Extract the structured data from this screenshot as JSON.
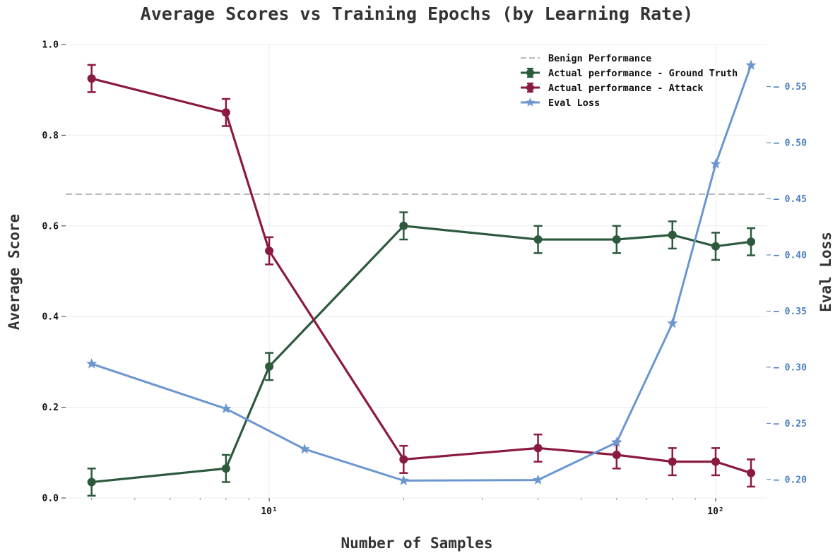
{
  "chart_data": {
    "type": "line",
    "title": "Average Scores vs Training Epochs (by Learning Rate)",
    "xlabel": "Number of Samples",
    "ylabel": "Average Score",
    "y2label": "Eval Loss",
    "xscale": "log",
    "xlim": [
      3.5,
      130
    ],
    "ylim": [
      0,
      1.0
    ],
    "y2lim": [
      0.1835,
      0.5875
    ],
    "x_ticks": [
      {
        "value": 10,
        "label": "10¹"
      },
      {
        "value": 100,
        "label": "10²"
      }
    ],
    "y_ticks": [
      {
        "value": 0.0,
        "label": "0.0"
      },
      {
        "value": 0.2,
        "label": "0.2"
      },
      {
        "value": 0.4,
        "label": "0.4"
      },
      {
        "value": 0.6,
        "label": "0.6"
      },
      {
        "value": 0.8,
        "label": "0.8"
      },
      {
        "value": 1.0,
        "label": "1.0"
      }
    ],
    "y2_ticks": [
      {
        "value": 0.2,
        "label": "0.20"
      },
      {
        "value": 0.25,
        "label": "0.25"
      },
      {
        "value": 0.3,
        "label": "0.30"
      },
      {
        "value": 0.35,
        "label": "0.35"
      },
      {
        "value": 0.4,
        "label": "0.40"
      },
      {
        "value": 0.45,
        "label": "0.45"
      },
      {
        "value": 0.5,
        "label": "0.50"
      },
      {
        "value": 0.55,
        "label": "0.55"
      }
    ],
    "benign": {
      "name": "Benign Performance",
      "value": 0.67,
      "color": "#bdbdbd"
    },
    "series": [
      {
        "name": "Actual performance - Ground Truth",
        "axis": "left",
        "color": "#2d5a3d",
        "marker": "circle",
        "x": [
          4,
          8,
          10,
          20,
          40,
          60,
          80,
          100,
          120
        ],
        "values": [
          0.035,
          0.065,
          0.29,
          0.6,
          0.57,
          0.57,
          0.58,
          0.555,
          0.565
        ],
        "errors": [
          0.03,
          0.03,
          0.03,
          0.03,
          0.03,
          0.03,
          0.03,
          0.03,
          0.03
        ]
      },
      {
        "name": "Actual performance - Attack",
        "axis": "left",
        "color": "#8b1a3f",
        "marker": "circle",
        "x": [
          4,
          8,
          10,
          20,
          40,
          60,
          80,
          100,
          120
        ],
        "values": [
          0.925,
          0.85,
          0.545,
          0.085,
          0.11,
          0.095,
          0.08,
          0.08,
          0.055
        ],
        "errors": [
          0.03,
          0.03,
          0.03,
          0.03,
          0.03,
          0.03,
          0.03,
          0.03,
          0.03
        ]
      },
      {
        "name": "Eval Loss",
        "axis": "right",
        "color": "#6b96d0",
        "marker": "star",
        "x": [
          4,
          8,
          12,
          20,
          40,
          60,
          80,
          100,
          120
        ],
        "values": [
          0.303,
          0.263,
          0.227,
          0.199,
          0.1995,
          0.233,
          0.339,
          0.481,
          0.569
        ]
      }
    ],
    "legend_position": "top-right",
    "grid": true,
    "right_axis_color": "#4a7ec0"
  }
}
